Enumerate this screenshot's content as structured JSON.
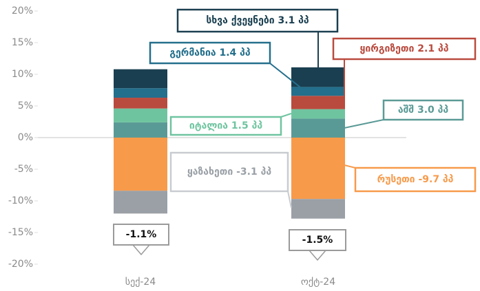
{
  "chart_data": {
    "type": "stacked_bar",
    "categories": [
      "სექ-24",
      "ოქტ-24"
    ],
    "ylim": [
      -20,
      20
    ],
    "yticks": [
      {
        "value": -20,
        "label": "-20%"
      },
      {
        "value": -15,
        "label": "-15%"
      },
      {
        "value": -10,
        "label": "-10%"
      },
      {
        "value": -5,
        "label": "-5%"
      },
      {
        "value": 0,
        "label": "0%"
      },
      {
        "value": 5,
        "label": "5%"
      },
      {
        "value": 10,
        "label": "10%"
      },
      {
        "value": 15,
        "label": "15%"
      },
      {
        "value": 20,
        "label": "20%"
      }
    ],
    "series": [
      {
        "color": "#5a9a96",
        "values": [
          2.4,
          3.0
        ],
        "value_labels": [
          null,
          "აშშ 3.0 პპ"
        ]
      },
      {
        "color": "#6fc4a0",
        "values": [
          2.2,
          1.5
        ],
        "value_labels": [
          null,
          "იტალია 1.5 პპ"
        ]
      },
      {
        "color": "#b94a3e",
        "values": [
          1.7,
          2.1
        ],
        "value_labels": [
          null,
          "ყირგიზეთი 2.1 პპ"
        ]
      },
      {
        "color": "#236f8c",
        "values": [
          1.5,
          1.4
        ],
        "value_labels": [
          null,
          "გერმანია 1.4 პპ"
        ]
      },
      {
        "color": "#1a3f50",
        "values": [
          3.0,
          3.1
        ],
        "value_labels": [
          null,
          "სხვა ქვეყნები 3.1 პპ"
        ]
      },
      {
        "color": "#f79a4a",
        "values": [
          -8.4,
          -9.7
        ],
        "value_labels": [
          null,
          "რუსეთი -9.7 პპ"
        ]
      },
      {
        "color": "#9aa0a6",
        "values": [
          -3.6,
          -3.1
        ],
        "value_labels": [
          null,
          "ყაზახეთი -3.1  პპ"
        ]
      }
    ],
    "totals": [
      -1.1,
      -1.5
    ],
    "total_labels": [
      "-1.1%",
      "-1.5%"
    ]
  }
}
